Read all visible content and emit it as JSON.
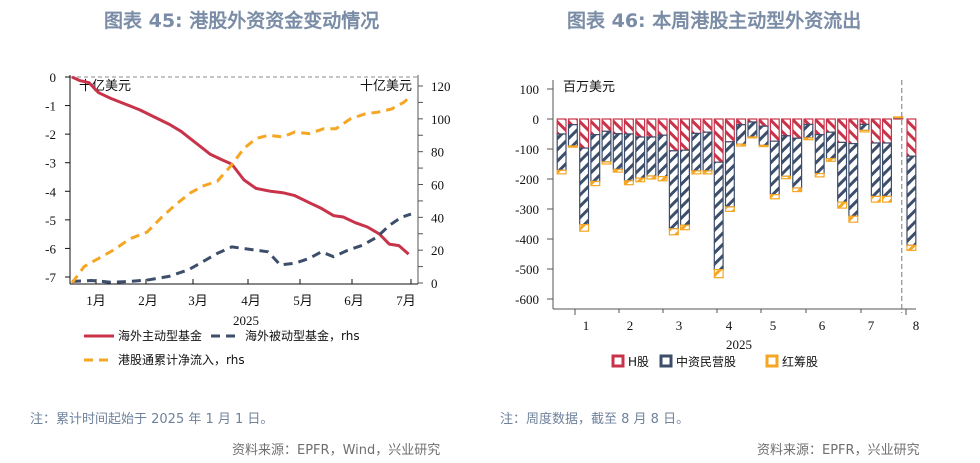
{
  "left": {
    "title": "图表 45: 港股外资资金变动情况",
    "note": "注：累计时间起始于 2025 年 1 月 1 日。",
    "source": "资料来源：EPFR，Wind，兴业研究"
  },
  "right": {
    "title": "图表 46: 本周港股主动型外资流出",
    "note": "注：周度数据，截至 8 月 8 日。",
    "source": "资料来源：EPFR，兴业研究"
  },
  "chart_data": [
    {
      "type": "line",
      "title": "图表 45: 港股外资资金变动情况",
      "xlabel": "2025",
      "unit_left": "十亿美元",
      "unit_right": "十亿美元",
      "x_ticks": [
        "1月",
        "2月",
        "3月",
        "4月",
        "5月",
        "6月",
        "7月"
      ],
      "y_left": {
        "ylim": [
          -7,
          0
        ],
        "ticks": [
          "0",
          "-1",
          "-2",
          "-3",
          "-4",
          "-5",
          "-6",
          "-7"
        ]
      },
      "y_right": {
        "ylim": [
          0,
          120
        ],
        "ticks": [
          "0",
          "20",
          "40",
          "60",
          "80",
          "100",
          "120"
        ]
      },
      "x_range_months": [
        0,
        7.2
      ],
      "series": [
        {
          "name": "海外主动型基金",
          "axis": "left",
          "color": "#c8334a",
          "style": "solid",
          "x": [
            0,
            0.15,
            0.35,
            0.55,
            0.8,
            1.1,
            1.4,
            1.7,
            2.0,
            2.25,
            2.55,
            2.85,
            3.1,
            3.3,
            3.55,
            3.8,
            4.1,
            4.35,
            4.6,
            4.9,
            5.15,
            5.4,
            5.6,
            5.85,
            6.1,
            6.35,
            6.55,
            6.75,
            6.95
          ],
          "values": [
            0,
            -0.12,
            -0.2,
            -0.55,
            -0.75,
            -0.95,
            -1.15,
            -1.4,
            -1.65,
            -1.9,
            -2.3,
            -2.7,
            -2.9,
            -3.05,
            -3.6,
            -3.9,
            -4.0,
            -4.05,
            -4.15,
            -4.4,
            -4.6,
            -4.85,
            -4.9,
            -5.1,
            -5.25,
            -5.5,
            -5.85,
            -5.9,
            -6.2
          ]
        },
        {
          "name": "海外被动型基金, rhs",
          "axis": "right",
          "color": "#3d4e6b",
          "style": "dashed",
          "x": [
            0,
            0.4,
            0.8,
            1.2,
            1.6,
            2.0,
            2.4,
            2.7,
            3.0,
            3.3,
            3.55,
            3.8,
            4.05,
            4.3,
            4.6,
            4.9,
            5.15,
            5.4,
            5.7,
            6.0,
            6.3,
            6.55,
            6.8,
            7.0
          ],
          "values": [
            1,
            1.5,
            0.5,
            1,
            2,
            4,
            8,
            13,
            18,
            22,
            21,
            20,
            19,
            11,
            12,
            15,
            19,
            16,
            20,
            23,
            28,
            35,
            40,
            42
          ]
        },
        {
          "name": "港股通累计净流入, rhs",
          "axis": "right",
          "color": "#f5a623",
          "style": "dashed",
          "x": [
            0,
            0.25,
            0.55,
            0.85,
            1.2,
            1.55,
            1.85,
            2.15,
            2.45,
            2.7,
            3.0,
            3.3,
            3.55,
            3.8,
            4.05,
            4.35,
            4.6,
            4.9,
            5.2,
            5.45,
            5.75,
            6.05,
            6.3,
            6.6,
            6.85,
            7.0
          ],
          "values": [
            0,
            10,
            15,
            20,
            27,
            31,
            40,
            48,
            55,
            59,
            62,
            72,
            82,
            88,
            90,
            89,
            92,
            91,
            94,
            94,
            100,
            103,
            104,
            106,
            110,
            114
          ]
        }
      ]
    },
    {
      "type": "bar",
      "stacked": true,
      "title": "图表 46: 本周港股主动型外资流出",
      "unit": "百万美元",
      "xlabel": "2025",
      "x_ticks": [
        "1",
        "2",
        "3",
        "4",
        "5",
        "6",
        "7",
        "8"
      ],
      "ylim": [
        -600,
        100
      ],
      "y_ticks": [
        "100",
        "0",
        "-100",
        "-200",
        "-300",
        "-400",
        "-500",
        "-600"
      ],
      "series": [
        {
          "name": "H股",
          "color": "#c8334a",
          "values": [
            -50,
            -19,
            -97,
            -52,
            -41,
            -49,
            -50,
            -60,
            -60,
            -54,
            -106,
            -104,
            -48,
            -44,
            -144,
            -76,
            -19,
            -10,
            -24,
            -74,
            -56,
            -64,
            -18,
            -52,
            -44,
            -78,
            -82,
            -18,
            -80,
            -80,
            3,
            -124
          ]
        },
        {
          "name": "中资民营股",
          "color": "#3d4e6b",
          "values": [
            -121,
            -71,
            -255,
            -156,
            -102,
            -119,
            -156,
            -137,
            -130,
            -138,
            -260,
            -250,
            -125,
            -129,
            -358,
            -217,
            -65,
            -50,
            -64,
            -178,
            -135,
            -166,
            -45,
            -130,
            -88,
            -199,
            -242,
            -20,
            -178,
            -178,
            3,
            -297
          ]
        },
        {
          "name": "红筹股",
          "color": "#f5a623",
          "values": [
            -12,
            -4,
            -22,
            -14,
            -7,
            -9,
            -13,
            -12,
            -10,
            -14,
            -20,
            -15,
            -10,
            -10,
            -27,
            -15,
            -6,
            -3,
            -4,
            -14,
            -8,
            -12,
            -6,
            -11,
            -9,
            -20,
            -20,
            -5,
            -19,
            -19,
            1,
            -17
          ]
        }
      ],
      "week_month_marker": "dashed vertical line before last week"
    }
  ]
}
